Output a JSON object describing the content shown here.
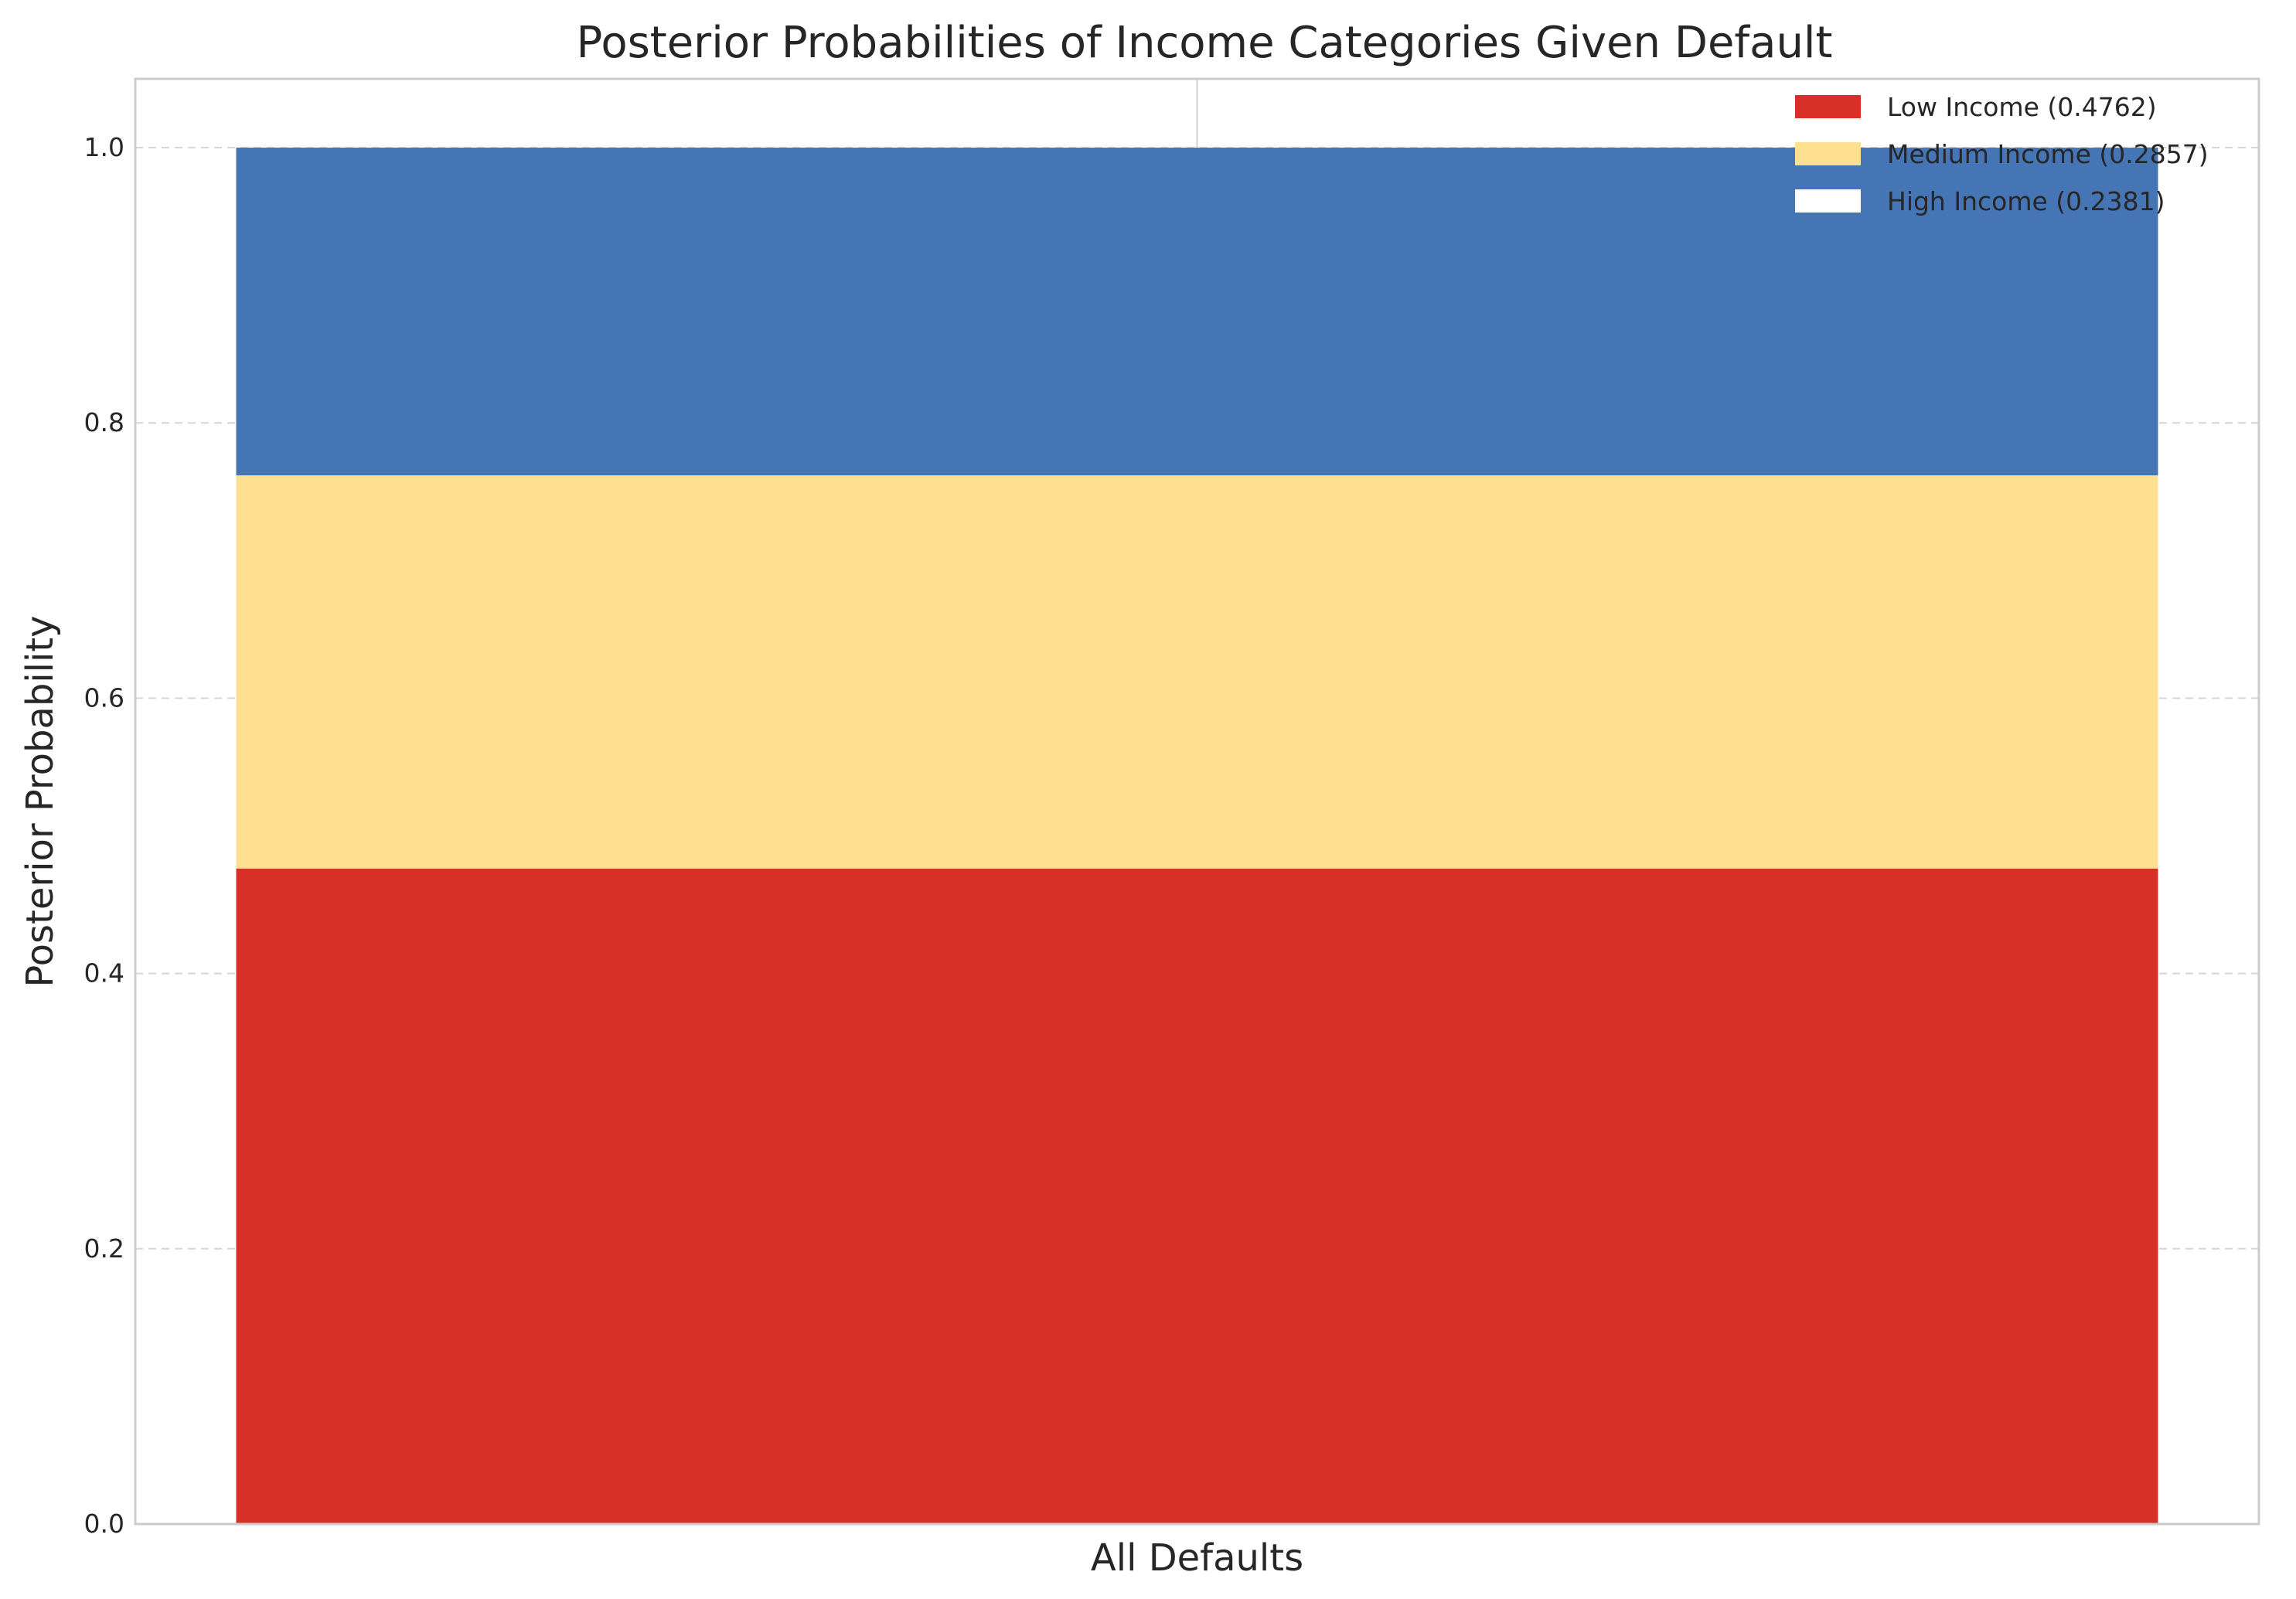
{
  "chart_data": {
    "type": "bar",
    "stacked": true,
    "title": "Posterior Probabilities of Income Categories Given Default",
    "xlabel": "",
    "ylabel": "Posterior Probability",
    "categories": [
      "All Defaults"
    ],
    "ylim": [
      0,
      1.05
    ],
    "yticks": [
      0.0,
      0.2,
      0.4,
      0.6,
      0.8,
      1.0
    ],
    "ytick_labels": [
      "0.0",
      "0.2",
      "0.4",
      "0.6",
      "0.8",
      "1.0"
    ],
    "grid": "y-dashed",
    "legend_position": "top-right",
    "series": [
      {
        "name": "Low Income (0.4762)",
        "values": [
          0.4762
        ],
        "color": "#d73027"
      },
      {
        "name": "Medium Income (0.2857)",
        "values": [
          0.2857
        ],
        "color": "#fee090"
      },
      {
        "name": "High Income (0.2381)",
        "values": [
          0.2381
        ],
        "color": "#4575b4"
      }
    ],
    "legend_high_swatch_color": "#ffffff"
  }
}
